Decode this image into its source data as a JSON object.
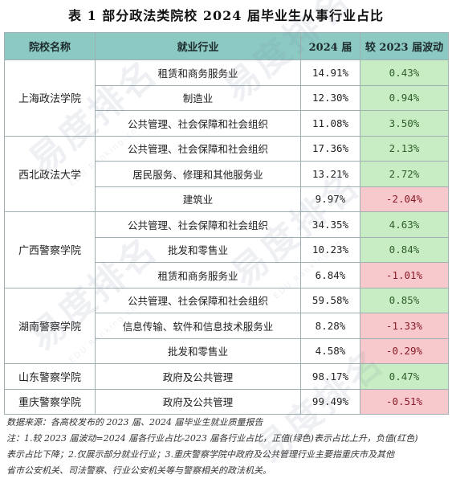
{
  "title": "表 1  部分政法类院校 2024 届毕业生从事行业占比",
  "headers": [
    "院校名称",
    "就业行业",
    "2024 届",
    "较 2023 届波动"
  ],
  "groups": [
    {
      "school": "上海政法学院",
      "rows": [
        {
          "industry": "租赁和商务服务业",
          "share": "14.91%",
          "change": "0.43%",
          "trend": "pos"
        },
        {
          "industry": "制造业",
          "share": "12.30%",
          "change": "0.94%",
          "trend": "pos"
        },
        {
          "industry": "公共管理、社会保障和社会组织",
          "share": "11.08%",
          "change": "3.50%",
          "trend": "pos"
        }
      ]
    },
    {
      "school": "西北政法大学",
      "rows": [
        {
          "industry": "公共管理、社会保障和社会组织",
          "share": "17.36%",
          "change": "2.13%",
          "trend": "pos"
        },
        {
          "industry": "居民服务、修理和其他服务业",
          "share": "13.21%",
          "change": "2.72%",
          "trend": "pos"
        },
        {
          "industry": "建筑业",
          "share": "9.97%",
          "change": "-2.04%",
          "trend": "neg"
        }
      ]
    },
    {
      "school": "广西警察学院",
      "rows": [
        {
          "industry": "公共管理、社会保障和社会组织",
          "share": "34.35%",
          "change": "4.63%",
          "trend": "pos"
        },
        {
          "industry": "批发和零售业",
          "share": "10.23%",
          "change": "0.84%",
          "trend": "pos"
        },
        {
          "industry": "租赁和商务服务业",
          "share": "6.84%",
          "change": "-1.01%",
          "trend": "neg"
        }
      ]
    },
    {
      "school": "湖南警察学院",
      "rows": [
        {
          "industry": "公共管理、社会保障和社会组织",
          "share": "59.58%",
          "change": "0.85%",
          "trend": "pos"
        },
        {
          "industry": "信息传输、软件和信息技术服务业",
          "share": "8.28%",
          "change": "-1.33%",
          "trend": "neg"
        },
        {
          "industry": "批发和零售业",
          "share": "4.58%",
          "change": "-0.29%",
          "trend": "neg"
        }
      ]
    },
    {
      "school": "山东警察学院",
      "rows": [
        {
          "industry": "政府及公共管理",
          "share": "98.17%",
          "change": "0.47%",
          "trend": "pos"
        }
      ]
    },
    {
      "school": "重庆警察学院",
      "rows": [
        {
          "industry": "政府及公共管理",
          "share": "99.49%",
          "change": "-0.51%",
          "trend": "neg"
        }
      ]
    }
  ],
  "notes": [
    "数据来源：各高校发布的 2023 届、2024 届毕业生就业质量报告",
    "注：1.较 2023 届波动=2024 届各行业占比-2023 届各行业占比，正值(绿色)表示占比上升，负值(红色)",
    "表示占比下降；2.仅展示部分就业行业；3.重庆警察学院中政府及公共管理行业主要指重庆市及其他",
    "省市公安机关、司法警察、行业公安机关等与警察相关的政法机关。"
  ],
  "watermark": {
    "text": "易度排名",
    "sub": "EDU Ranking.cn"
  },
  "colors": {
    "header": "#8cc9c3",
    "positive": "#c8edc4",
    "negative": "#f7c8cc"
  }
}
